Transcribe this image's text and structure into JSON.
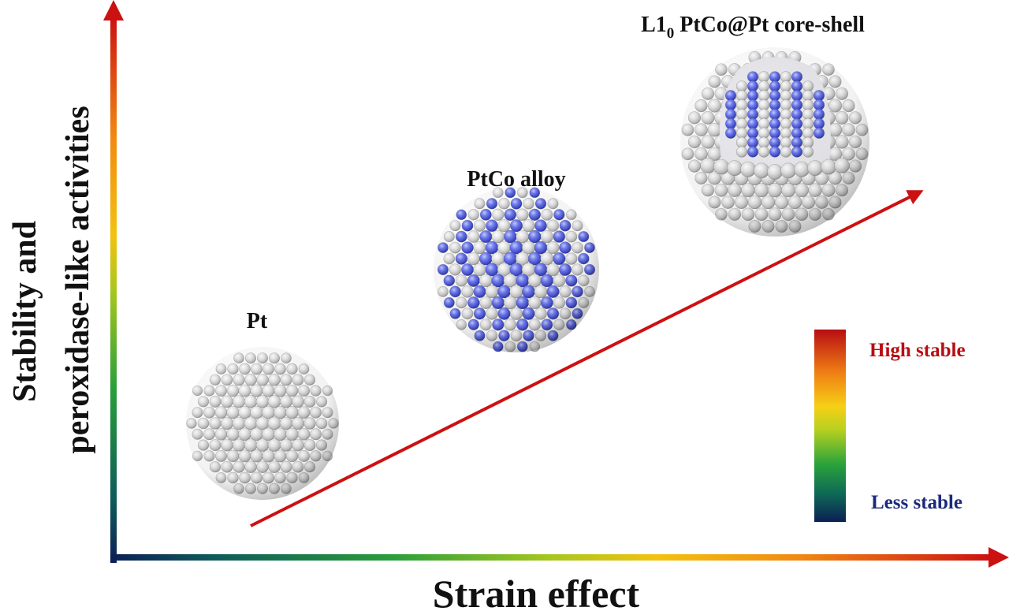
{
  "axes": {
    "x_label": "Strain effect",
    "y_label_line1": "Stability and",
    "y_label_line2": "peroxidase-like activities"
  },
  "particles": [
    {
      "label": "Pt",
      "type": "pure-pt"
    },
    {
      "label": "PtCo alloy",
      "type": "alloy"
    },
    {
      "label_prefix": "L1",
      "label_subscript": "0",
      "label_suffix": " PtCo@Pt core-shell",
      "type": "core-shell"
    }
  ],
  "legend": {
    "high_label": "High stable",
    "low_label": "Less stable",
    "high_color": "#b80d12",
    "low_color": "#1a2a7a"
  },
  "colors": {
    "pt_atom": "#dadada",
    "co_atom": "#5566dd",
    "trend_arrow": "#cc1111"
  }
}
